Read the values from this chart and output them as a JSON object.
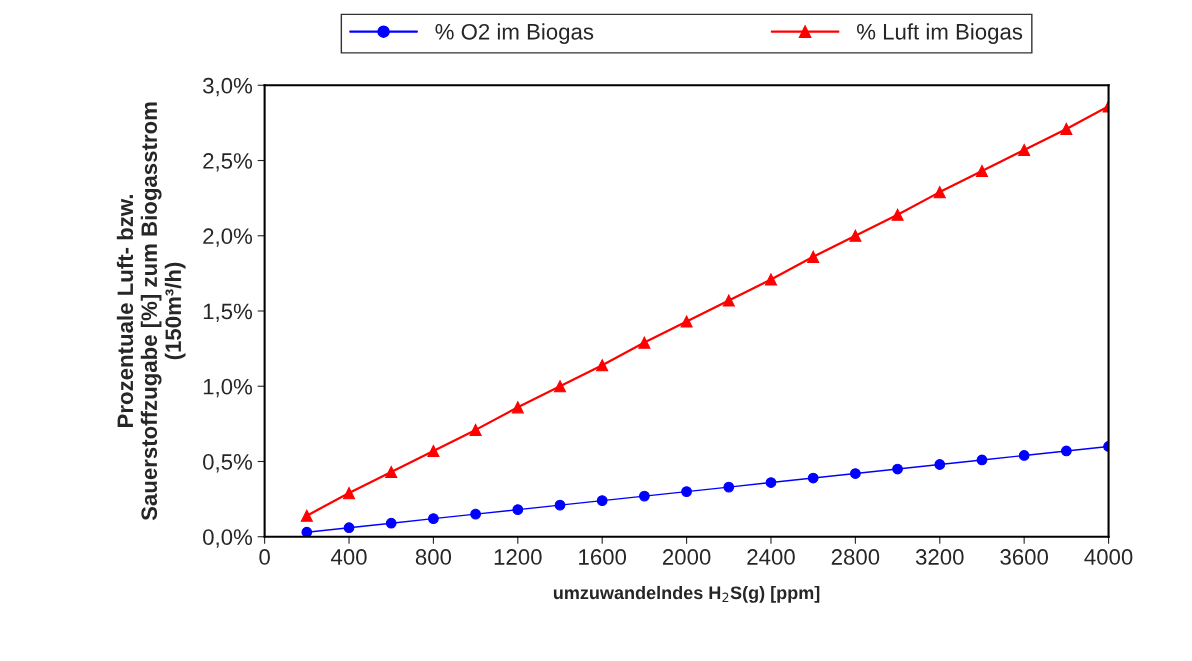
{
  "chart_data": {
    "type": "line",
    "xlabel": "umzuwandelndes H$_{2}$S(g) [ppm]",
    "ylabel": "Prozentuale Luft- bzw.\nSauerstoffzugabe [%] zum Biogasstrom\n(150m³/h)",
    "x": [
      200,
      400,
      600,
      800,
      1000,
      1200,
      1400,
      1600,
      1800,
      2000,
      2200,
      2400,
      2600,
      2800,
      3000,
      3200,
      3400,
      3600,
      3800,
      4000
    ],
    "series": [
      {
        "name": "% O2 im Biogas",
        "color": "#0000ff",
        "marker": "circle",
        "values": [
          0.03,
          0.06,
          0.09,
          0.12,
          0.15,
          0.18,
          0.21,
          0.24,
          0.27,
          0.3,
          0.33,
          0.36,
          0.39,
          0.42,
          0.45,
          0.48,
          0.51,
          0.54,
          0.57,
          0.6
        ]
      },
      {
        "name": "% Luft im Biogas",
        "color": "#ff0000",
        "marker": "triangle",
        "values": [
          0.14,
          0.29,
          0.43,
          0.57,
          0.71,
          0.86,
          1.0,
          1.14,
          1.29,
          1.43,
          1.57,
          1.71,
          1.86,
          2.0,
          2.14,
          2.29,
          2.43,
          2.57,
          2.71,
          2.86
        ]
      }
    ],
    "xlim": [
      0,
      4000
    ],
    "xticks": [
      0,
      400,
      800,
      1200,
      1600,
      2000,
      2400,
      2800,
      3200,
      3600,
      4000
    ],
    "ylim": [
      0,
      3
    ],
    "yticks": [
      {
        "value": 0,
        "label": "0,0%"
      },
      {
        "value": 0.5,
        "label": "0,5%"
      },
      {
        "value": 1,
        "label": "1,0%"
      },
      {
        "value": 1.5,
        "label": "1,5%"
      },
      {
        "value": 2,
        "label": "2,0%"
      },
      {
        "value": 2.5,
        "label": "2,5%"
      },
      {
        "value": 3,
        "label": "3,0%"
      }
    ],
    "grid": false,
    "legend": "top",
    "line_style": "solid"
  }
}
